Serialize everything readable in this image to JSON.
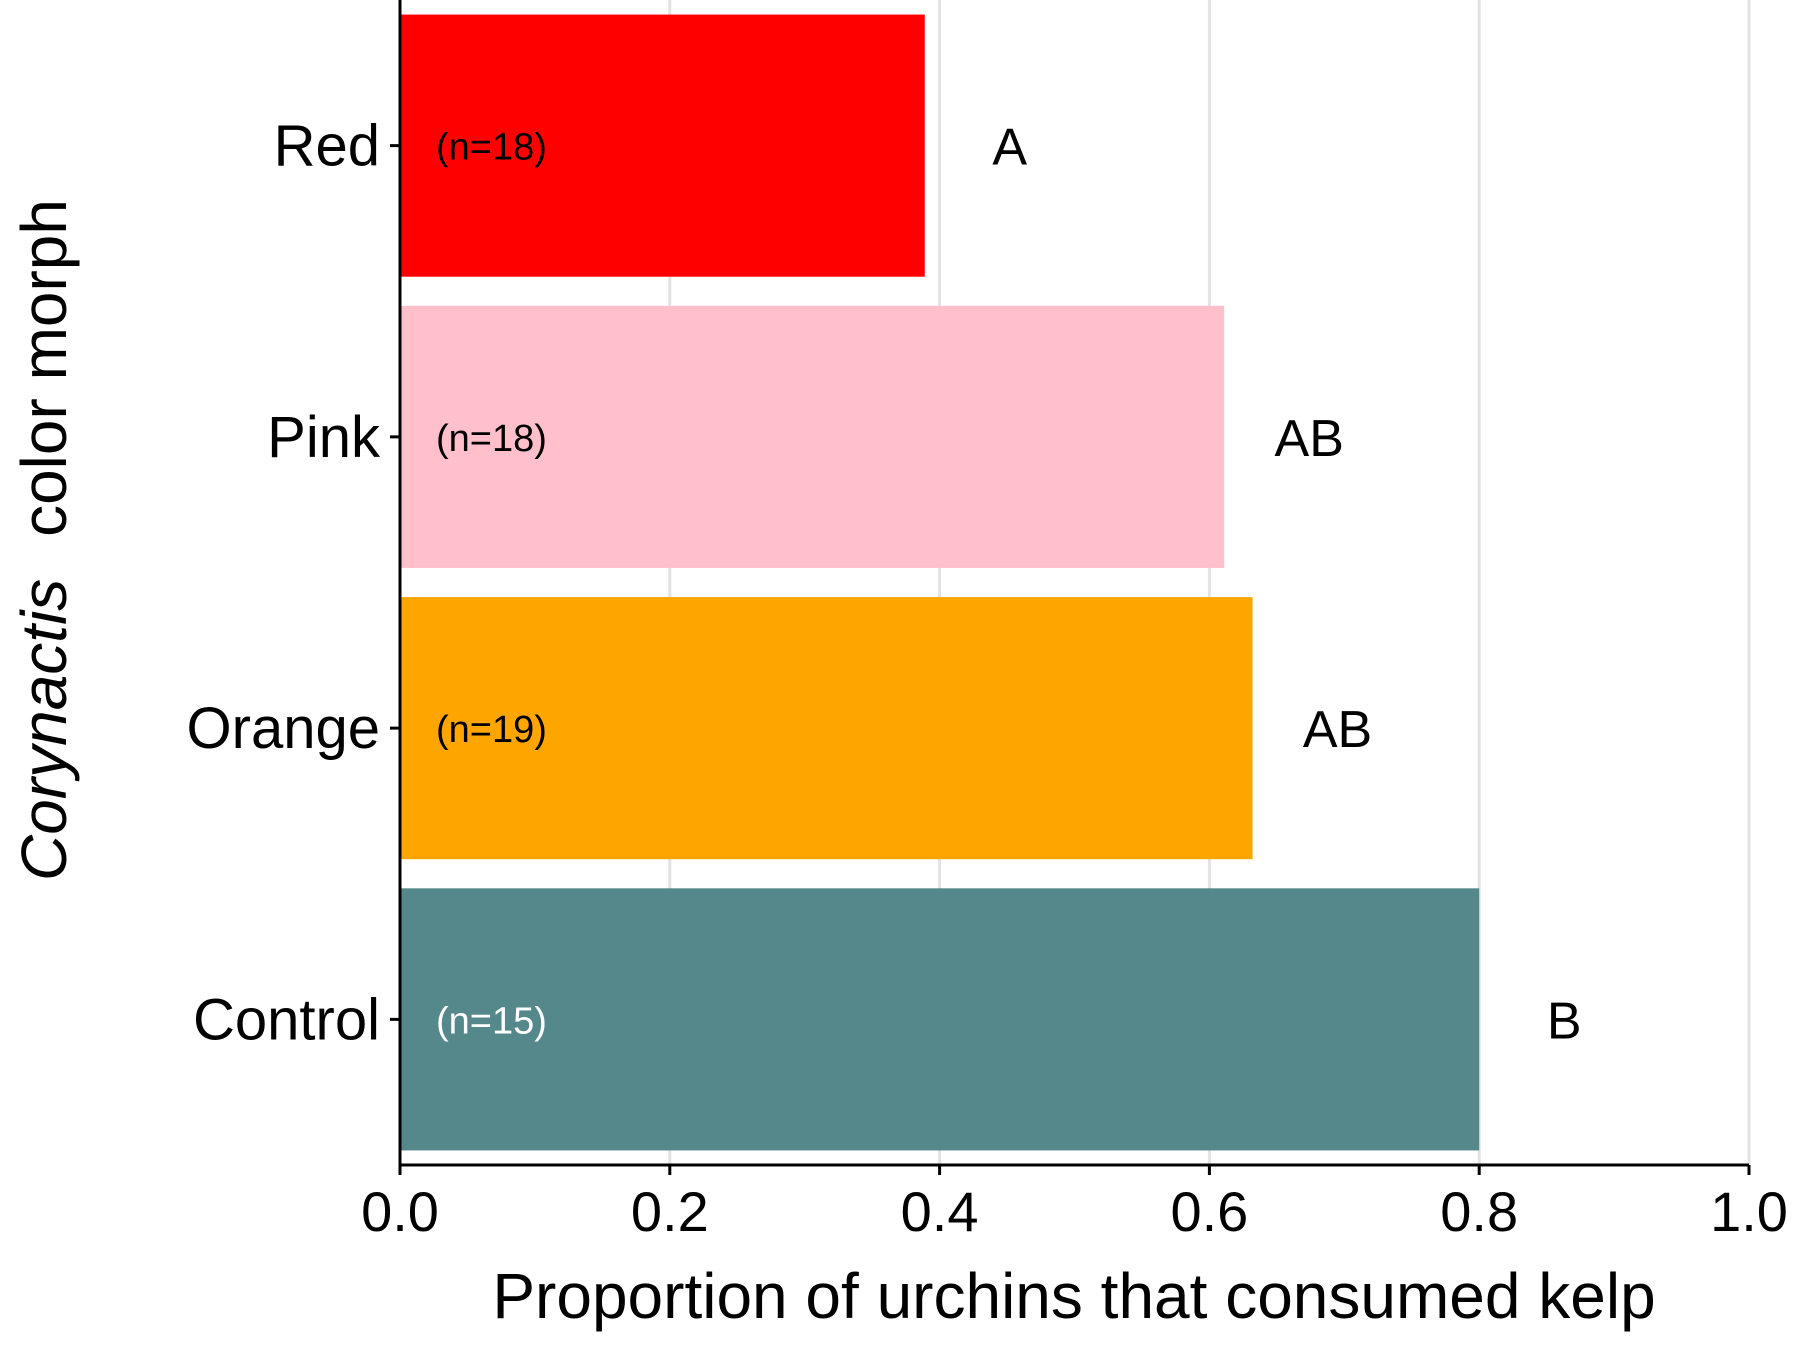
{
  "chart_data": {
    "type": "bar",
    "orientation": "horizontal",
    "categories": [
      "Red",
      "Pink",
      "Orange",
      "Control"
    ],
    "values": [
      0.389,
      0.611,
      0.632,
      0.8
    ],
    "sample_labels": [
      "(n=18)",
      "(n=18)",
      "(n=19)",
      "(n=15)"
    ],
    "significance_labels": [
      "A",
      "AB",
      "AB",
      "B"
    ],
    "colors": [
      "#ff0000",
      "#ffc0cb",
      "#ffa500",
      "#55888a"
    ],
    "sample_label_colors": [
      "#000000",
      "#000000",
      "#000000",
      "#ffffff"
    ],
    "xlabel": "Proportion of urchins that consumed kelp",
    "ylabel_italic": "Corynactis",
    "ylabel_rest": "color morph",
    "xlim": [
      0,
      1.0
    ],
    "xticks": [
      "0.0",
      "0.2",
      "0.4",
      "0.6",
      "0.8",
      "1.0"
    ],
    "grid": "vertical"
  }
}
